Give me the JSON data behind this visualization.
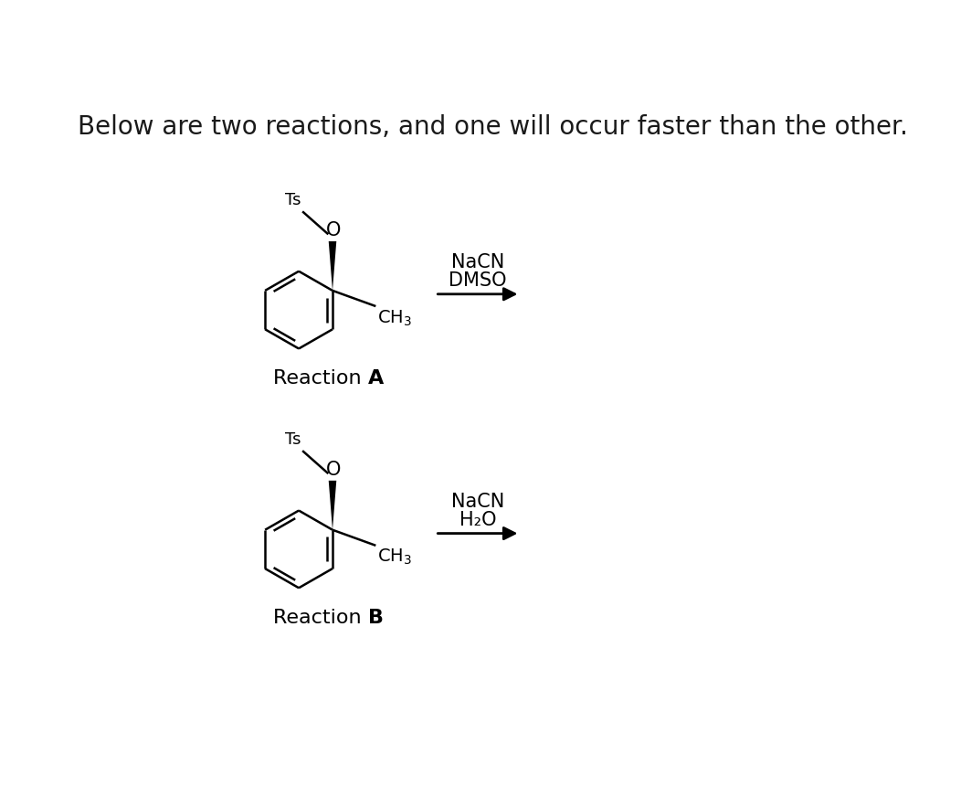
{
  "title": "Below are two reactions, and one will occur faster than the other.",
  "title_fontsize": 20,
  "bg_color": "#ffffff",
  "text_color": "#1a1a1a",
  "reaction_a_label": "Reaction ",
  "reaction_a_bold": "A",
  "reaction_b_label": "Reaction ",
  "reaction_b_bold": "B",
  "reagent_a_line1": "NaCN",
  "reagent_a_line2": "DMSO",
  "reagent_b_line1": "NaCN",
  "reagent_b_line2": "H₂O",
  "label_fontsize": 16,
  "reagent_fontsize": 15,
  "chem_fontsize": 14,
  "ts_fontsize": 13
}
